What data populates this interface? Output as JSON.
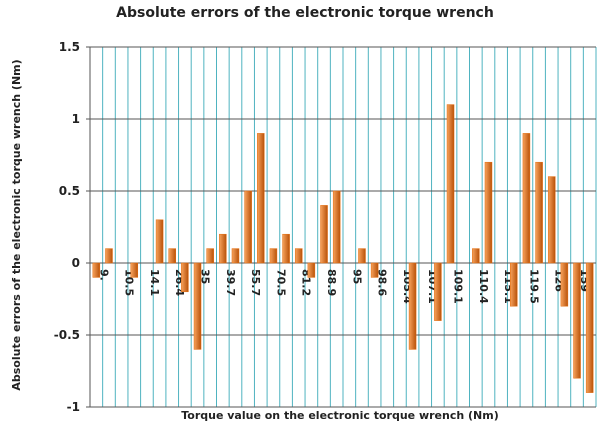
{
  "chart_data": {
    "type": "bar",
    "title": "Absolute errors of the electronic torque wrench",
    "x_label": "Torque value on the electronic torque wrench  (Nm)",
    "y_label": "Absolute errors of the electronic torque wrench (Nm)",
    "categories": [
      "9.",
      null,
      "10.5",
      null,
      "14.1",
      null,
      "26.4",
      null,
      "35",
      null,
      "39.7",
      null,
      "55.7",
      null,
      "70.5",
      null,
      "81.2",
      null,
      "88.9",
      null,
      "95",
      null,
      "98.6",
      null,
      "105.4",
      null,
      "107.1",
      null,
      "109.1",
      null,
      "110.4",
      null,
      "115.1",
      null,
      "119.5",
      null,
      "126",
      null,
      "159",
      null
    ],
    "values": [
      -0.1,
      0.1,
      0,
      -0.1,
      0,
      0.3,
      0.1,
      -0.2,
      -0.6,
      0.1,
      0.2,
      0.1,
      0.5,
      0.9,
      0.1,
      0.2,
      0.1,
      -0.1,
      0.4,
      0.5,
      0,
      0.1,
      -0.1,
      0,
      0,
      -0.6,
      0,
      -0.4,
      1.1,
      0,
      0.1,
      0.7,
      0,
      -0.3,
      0.9,
      0.7,
      0.6,
      -0.3,
      -0.8,
      -0.9
    ],
    "color": "#e46c0a",
    "ylim": [
      -1,
      1.5
    ],
    "yticks": [
      -1,
      -0.5,
      0,
      0.5,
      1,
      1.5
    ],
    "grid": true
  }
}
